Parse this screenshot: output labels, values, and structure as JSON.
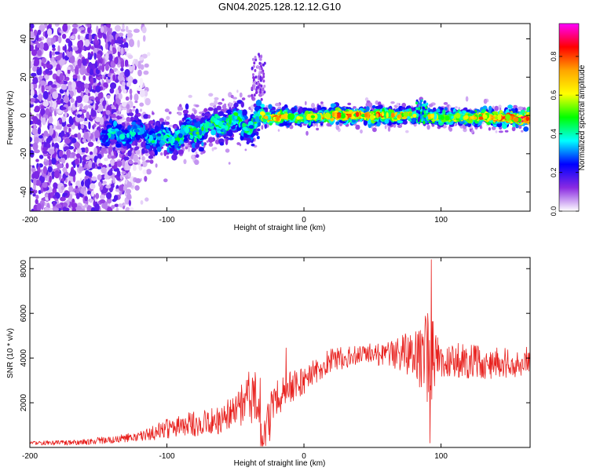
{
  "figure": {
    "title": "GN04.2025.128.12.12.G10"
  },
  "chart_data": [
    {
      "type": "heatmap",
      "title": "GN04.2025.128.12.12.G10",
      "xlabel": "Height of straight line (km)",
      "ylabel": "Frequency (Hz)",
      "xlim": [
        -200,
        165
      ],
      "ylim": [
        -50,
        48
      ],
      "xticks": [
        -200,
        -100,
        0,
        100
      ],
      "yticks": [
        -40,
        -20,
        0,
        20,
        40
      ],
      "grid": false,
      "colorbar": {
        "label": "Normalized spectral amplitude",
        "range": [
          0,
          0.97
        ],
        "ticks": [
          0.0,
          0.2,
          0.4,
          0.6,
          0.8
        ],
        "colors": [
          "#ffffff",
          "#8a2be2",
          "#0000ff",
          "#00ffff",
          "#00ff00",
          "#ffff00",
          "#ffa500",
          "#ff0000",
          "#ff00ff"
        ]
      },
      "ridge": {
        "x": [
          -145,
          -130,
          -120,
          -110,
          -100,
          -90,
          -80,
          -70,
          -60,
          -50,
          -40,
          -35,
          -30,
          -20,
          -10,
          0,
          20,
          40,
          60,
          80,
          85,
          90,
          100,
          120,
          140,
          165
        ],
        "freq": [
          -11,
          -10,
          -9,
          -11,
          -13,
          -11,
          -8,
          -6,
          -4,
          -3,
          -6,
          -3,
          -1,
          -1,
          -1,
          -1,
          0,
          0,
          0,
          0,
          2,
          -1,
          -1,
          -1,
          -1,
          -2
        ],
        "amplitude": [
          0.35,
          0.38,
          0.35,
          0.4,
          0.45,
          0.45,
          0.45,
          0.45,
          0.5,
          0.45,
          0.4,
          0.5,
          0.6,
          0.7,
          0.6,
          0.55,
          0.75,
          0.75,
          0.7,
          0.6,
          0.4,
          0.65,
          0.6,
          0.65,
          0.75,
          0.9
        ]
      },
      "noise_region": {
        "x_range": [
          -200,
          -125
        ],
        "freq_range": [
          -50,
          48
        ]
      }
    },
    {
      "type": "line",
      "xlabel": "Height of straight line (km)",
      "ylabel": "SNR (10 * v/v)",
      "xlim": [
        -200,
        165
      ],
      "ylim": [
        0,
        8500
      ],
      "xticks": [
        -200,
        -100,
        0,
        100
      ],
      "yticks": [
        2000,
        4000,
        6000,
        8000
      ],
      "grid": false,
      "color": "#e8211e",
      "envelope": {
        "x": [
          -200,
          -180,
          -160,
          -140,
          -120,
          -110,
          -100,
          -90,
          -80,
          -70,
          -60,
          -50,
          -45,
          -40,
          -35,
          -32,
          -30,
          -25,
          -20,
          -10,
          0,
          10,
          20,
          40,
          60,
          80,
          90,
          95,
          100,
          120,
          140,
          165
        ],
        "y": [
          200,
          200,
          250,
          350,
          500,
          650,
          850,
          1000,
          1050,
          1150,
          1250,
          1550,
          2100,
          2400,
          2300,
          1000,
          150,
          1500,
          2200,
          2700,
          3000,
          3500,
          3900,
          4150,
          4150,
          4250,
          4000,
          3800,
          3950,
          3850,
          3750,
          3900
        ]
      },
      "spread": {
        "x": [
          -200,
          -120,
          -100,
          -60,
          -50,
          -40,
          -33,
          -30,
          0,
          30,
          60,
          80,
          90,
          95,
          100,
          165
        ],
        "y": [
          80,
          200,
          450,
          650,
          900,
          1300,
          1400,
          900,
          600,
          500,
          500,
          1100,
          2100,
          1900,
          800,
          650
        ]
      },
      "peaks": [
        {
          "x": 93,
          "y": 8400
        },
        {
          "x": 92,
          "y": 200
        },
        {
          "x": -32,
          "y": 3100
        },
        {
          "x": -13,
          "y": 4450
        },
        {
          "x": -25,
          "y": 300
        },
        {
          "x": 84,
          "y": 5200
        }
      ],
      "sample_count": 1100
    }
  ]
}
